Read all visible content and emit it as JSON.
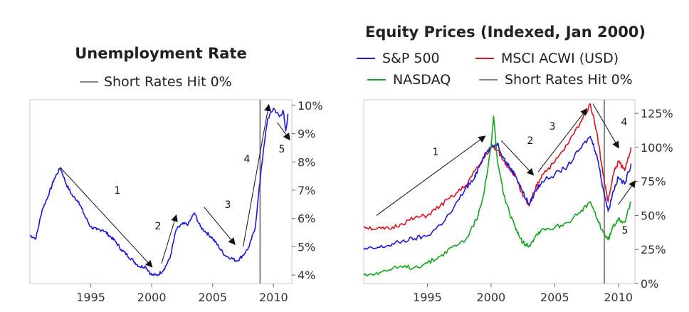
{
  "chart_data": [
    {
      "type": "line",
      "title": "Unemployment Rate",
      "legend": [
        "Short Rates Hit 0%"
      ],
      "legend_placement": "top",
      "grid": false,
      "x_ticks": [
        "1995",
        "2000",
        "2005",
        "2010"
      ],
      "y_ticks": [
        "4%",
        "5%",
        "6%",
        "7%",
        "8%",
        "9%",
        "10%"
      ],
      "xlim": [
        1990,
        2011.5
      ],
      "ylim": [
        3.7,
        10.2
      ],
      "reference_line": {
        "name": "Short Rates Hit 0%",
        "x": 2008.9,
        "color": "#888888"
      },
      "series": [
        {
          "color": "#1a1adf",
          "points": [
            [
              1990.0,
              5.4
            ],
            [
              1990.5,
              5.3
            ],
            [
              1991.0,
              6.3
            ],
            [
              1991.5,
              6.8
            ],
            [
              1992.0,
              7.4
            ],
            [
              1992.5,
              7.8
            ],
            [
              1993.0,
              7.2
            ],
            [
              1993.5,
              6.8
            ],
            [
              1994.0,
              6.6
            ],
            [
              1994.5,
              6.1
            ],
            [
              1995.0,
              5.7
            ],
            [
              1995.5,
              5.6
            ],
            [
              1996.0,
              5.6
            ],
            [
              1996.5,
              5.4
            ],
            [
              1997.0,
              5.2
            ],
            [
              1997.5,
              4.9
            ],
            [
              1998.0,
              4.7
            ],
            [
              1998.5,
              4.5
            ],
            [
              1999.0,
              4.3
            ],
            [
              1999.5,
              4.3
            ],
            [
              2000.0,
              4.0
            ],
            [
              2000.5,
              4.0
            ],
            [
              2001.0,
              4.2
            ],
            [
              2001.5,
              4.6
            ],
            [
              2002.0,
              5.6
            ],
            [
              2002.5,
              5.8
            ],
            [
              2003.0,
              5.8
            ],
            [
              2003.5,
              6.2
            ],
            [
              2004.0,
              5.7
            ],
            [
              2004.5,
              5.5
            ],
            [
              2005.0,
              5.3
            ],
            [
              2005.5,
              5.0
            ],
            [
              2006.0,
              4.7
            ],
            [
              2006.5,
              4.6
            ],
            [
              2007.0,
              4.5
            ],
            [
              2007.5,
              4.7
            ],
            [
              2008.0,
              5.0
            ],
            [
              2008.5,
              5.7
            ],
            [
              2009.0,
              7.8
            ],
            [
              2009.5,
              9.5
            ],
            [
              2010.0,
              9.9
            ],
            [
              2010.5,
              9.6
            ],
            [
              2010.8,
              9.8
            ],
            [
              2011.0,
              9.1
            ],
            [
              2011.2,
              9.7
            ]
          ]
        }
      ],
      "annotations": [
        {
          "label": "1",
          "from": [
            1992.5,
            7.8
          ],
          "to": [
            2000.0,
            4.3
          ]
        },
        {
          "label": "2",
          "from": [
            2000.8,
            4.4
          ],
          "to": [
            2002.0,
            6.1
          ]
        },
        {
          "label": "3",
          "from": [
            2004.3,
            6.4
          ],
          "to": [
            2006.8,
            5.1
          ]
        },
        {
          "label": "4",
          "from": [
            2007.5,
            5.0
          ],
          "to": [
            2009.6,
            10.0
          ]
        },
        {
          "label": "5",
          "from": [
            2010.3,
            9.4
          ],
          "to": [
            2011.3,
            8.8
          ]
        }
      ]
    },
    {
      "type": "line",
      "title": "Equity Prices (Indexed, Jan 2000)",
      "legend": [
        "S&P 500",
        "MSCI ACWI (USD)",
        "NASDAQ",
        "Short Rates Hit 0%"
      ],
      "legend_placement": "top",
      "grid": false,
      "x_ticks": [
        "1995",
        "2000",
        "2005",
        "2010"
      ],
      "y_ticks": [
        "0%",
        "25%",
        "50%",
        "75%",
        "100%",
        "125%"
      ],
      "xlim": [
        1990,
        2011.3
      ],
      "ylim": [
        0,
        135
      ],
      "reference_line": {
        "name": "Short Rates Hit 0%",
        "x": 2008.9,
        "color": "#888888"
      },
      "series": [
        {
          "name": "S&P 500",
          "color": "#1a1adf",
          "points": [
            [
              1990.0,
              25
            ],
            [
              1991.0,
              26
            ],
            [
              1992.0,
              28
            ],
            [
              1993.0,
              31
            ],
            [
              1994.0,
              33
            ],
            [
              1995.0,
              35
            ],
            [
              1996.0,
              43
            ],
            [
              1997.0,
              54
            ],
            [
              1998.0,
              70
            ],
            [
              1998.7,
              77
            ],
            [
              1999.0,
              85
            ],
            [
              1999.5,
              95
            ],
            [
              2000.0,
              100
            ],
            [
              2000.5,
              103
            ],
            [
              2001.0,
              92
            ],
            [
              2001.5,
              85
            ],
            [
              2002.0,
              78
            ],
            [
              2002.5,
              67
            ],
            [
              2003.0,
              58
            ],
            [
              2003.5,
              68
            ],
            [
              2004.0,
              75
            ],
            [
              2005.0,
              80
            ],
            [
              2006.0,
              86
            ],
            [
              2007.0,
              99
            ],
            [
              2007.8,
              108
            ],
            [
              2008.3,
              95
            ],
            [
              2008.8,
              70
            ],
            [
              2009.2,
              53
            ],
            [
              2009.6,
              68
            ],
            [
              2010.0,
              78
            ],
            [
              2010.5,
              73
            ],
            [
              2011.0,
              88
            ]
          ]
        },
        {
          "name": "MSCI ACWI (USD)",
          "color": "#e0101f",
          "points": [
            [
              1990.0,
              42
            ],
            [
              1991.0,
              40
            ],
            [
              1992.0,
              40
            ],
            [
              1993.0,
              44
            ],
            [
              1994.0,
              48
            ],
            [
              1995.0,
              50
            ],
            [
              1996.0,
              57
            ],
            [
              1997.0,
              64
            ],
            [
              1998.0,
              72
            ],
            [
              1999.0,
              86
            ],
            [
              2000.0,
              100
            ],
            [
              2000.5,
              98
            ],
            [
              2001.0,
              90
            ],
            [
              2001.5,
              84
            ],
            [
              2002.0,
              78
            ],
            [
              2002.5,
              64
            ],
            [
              2003.0,
              57
            ],
            [
              2003.5,
              70
            ],
            [
              2004.0,
              80
            ],
            [
              2005.0,
              89
            ],
            [
              2006.0,
              102
            ],
            [
              2007.0,
              118
            ],
            [
              2007.8,
              132
            ],
            [
              2008.3,
              112
            ],
            [
              2008.8,
              80
            ],
            [
              2009.2,
              60
            ],
            [
              2009.6,
              80
            ],
            [
              2010.0,
              90
            ],
            [
              2010.5,
              83
            ],
            [
              2011.0,
              100
            ]
          ]
        },
        {
          "name": "NASDAQ",
          "color": "#10a818",
          "points": [
            [
              1990.0,
              6
            ],
            [
              1991.0,
              8
            ],
            [
              1992.0,
              10
            ],
            [
              1993.0,
              12
            ],
            [
              1994.0,
              12
            ],
            [
              1995.0,
              15
            ],
            [
              1996.0,
              20
            ],
            [
              1997.0,
              27
            ],
            [
              1998.0,
              32
            ],
            [
              1999.0,
              50
            ],
            [
              1999.5,
              70
            ],
            [
              2000.0,
              100
            ],
            [
              2000.2,
              123
            ],
            [
              2000.5,
              90
            ],
            [
              2001.0,
              65
            ],
            [
              2001.5,
              50
            ],
            [
              2002.0,
              40
            ],
            [
              2002.5,
              30
            ],
            [
              2003.0,
              28
            ],
            [
              2003.5,
              35
            ],
            [
              2004.0,
              40
            ],
            [
              2005.0,
              41
            ],
            [
              2006.0,
              45
            ],
            [
              2007.0,
              52
            ],
            [
              2007.8,
              60
            ],
            [
              2008.3,
              48
            ],
            [
              2008.8,
              38
            ],
            [
              2009.2,
              32
            ],
            [
              2009.6,
              42
            ],
            [
              2010.0,
              48
            ],
            [
              2010.5,
              45
            ],
            [
              2011.0,
              60
            ]
          ]
        }
      ],
      "annotations": [
        {
          "label": "1",
          "from": [
            1991.0,
            50
          ],
          "to": [
            1999.5,
            108
          ]
        },
        {
          "label": "2",
          "from": [
            2000.8,
            105
          ],
          "to": [
            2003.3,
            80
          ]
        },
        {
          "label": "3",
          "from": [
            2003.7,
            82
          ],
          "to": [
            2007.5,
            128
          ]
        },
        {
          "label": "4",
          "from": [
            2008.0,
            132
          ],
          "to": [
            2010.0,
            100
          ]
        },
        {
          "label": "5",
          "from": [
            2010.0,
            58
          ],
          "to": [
            2011.3,
            75
          ]
        }
      ]
    }
  ]
}
